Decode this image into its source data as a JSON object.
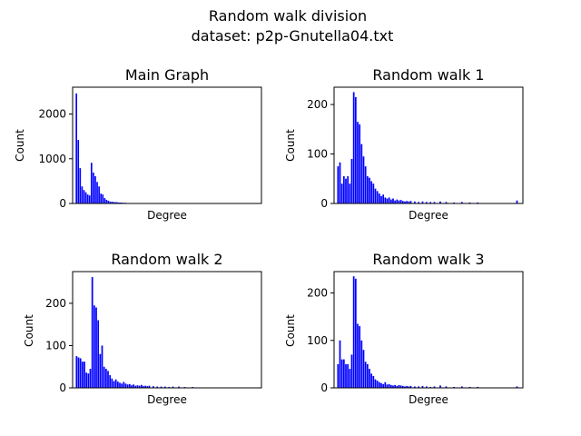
{
  "figure": {
    "title_line1": "Random walk division",
    "title_line2": "dataset: p2p-Gnutella04.txt",
    "bar_color": "#0000ff"
  },
  "chart_data": [
    {
      "type": "bar",
      "title": "Main Graph",
      "xlabel": "Degree",
      "ylabel": "Count",
      "ylim": [
        0,
        2600
      ],
      "yticks": [
        0,
        1000,
        2000
      ],
      "xlim": [
        -1,
        99
      ],
      "x": [
        1,
        2,
        3,
        4,
        5,
        6,
        7,
        8,
        9,
        10,
        11,
        12,
        13,
        14,
        15,
        16,
        17,
        18,
        19,
        20,
        21,
        22,
        23,
        24,
        25,
        26,
        27,
        28,
        29,
        30
      ],
      "values": [
        2460,
        1420,
        790,
        380,
        300,
        250,
        200,
        180,
        910,
        690,
        610,
        480,
        380,
        220,
        200,
        120,
        80,
        60,
        40,
        40,
        30,
        30,
        25,
        20,
        20,
        15,
        15,
        10,
        10,
        10
      ]
    },
    {
      "type": "bar",
      "title": "Random walk 1",
      "xlabel": "Degree",
      "ylabel": "Count",
      "ylim": [
        0,
        235
      ],
      "yticks": [
        0,
        100,
        200
      ],
      "xlim": [
        -1,
        95
      ],
      "x": [
        1,
        2,
        3,
        4,
        5,
        6,
        7,
        8,
        9,
        10,
        11,
        12,
        13,
        14,
        15,
        16,
        17,
        18,
        19,
        20,
        21,
        22,
        23,
        24,
        25,
        26,
        27,
        28,
        29,
        30,
        31,
        32,
        33,
        34,
        35,
        36,
        37,
        38,
        40,
        42,
        44,
        46,
        48,
        50,
        53,
        56,
        60,
        64,
        68,
        72,
        92
      ],
      "values": [
        75,
        83,
        40,
        55,
        50,
        55,
        40,
        90,
        225,
        215,
        165,
        160,
        120,
        95,
        75,
        55,
        52,
        45,
        40,
        30,
        25,
        20,
        15,
        18,
        12,
        10,
        12,
        8,
        10,
        6,
        8,
        6,
        7,
        5,
        4,
        5,
        4,
        5,
        4,
        3,
        4,
        3,
        3,
        3,
        4,
        3,
        2,
        3,
        2,
        2,
        6
      ]
    },
    {
      "type": "bar",
      "title": "Random walk 2",
      "xlabel": "Degree",
      "ylabel": "Count",
      "ylim": [
        0,
        275
      ],
      "yticks": [
        0,
        100,
        200
      ],
      "xlim": [
        -1,
        95
      ],
      "x": [
        1,
        2,
        3,
        4,
        5,
        6,
        7,
        8,
        9,
        10,
        11,
        12,
        13,
        14,
        15,
        16,
        17,
        18,
        19,
        20,
        21,
        22,
        23,
        24,
        25,
        26,
        27,
        28,
        29,
        30,
        31,
        32,
        33,
        34,
        35,
        36,
        37,
        38,
        40,
        42,
        44,
        46,
        48,
        50,
        53,
        56,
        60
      ],
      "values": [
        75,
        72,
        70,
        62,
        62,
        36,
        34,
        45,
        262,
        195,
        190,
        160,
        80,
        100,
        50,
        45,
        40,
        30,
        22,
        16,
        20,
        15,
        12,
        10,
        14,
        10,
        8,
        9,
        6,
        8,
        5,
        6,
        5,
        7,
        4,
        5,
        4,
        5,
        4,
        3,
        3,
        3,
        2,
        3,
        3,
        2,
        2
      ]
    },
    {
      "type": "bar",
      "title": "Random walk 3",
      "xlabel": "Degree",
      "ylabel": "Count",
      "ylim": [
        0,
        245
      ],
      "yticks": [
        0,
        100,
        200
      ],
      "xlim": [
        -1,
        95
      ],
      "x": [
        1,
        2,
        3,
        4,
        5,
        6,
        7,
        8,
        9,
        10,
        11,
        12,
        13,
        14,
        15,
        16,
        17,
        18,
        19,
        20,
        21,
        22,
        23,
        24,
        25,
        26,
        27,
        28,
        29,
        30,
        31,
        32,
        33,
        34,
        35,
        36,
        37,
        38,
        40,
        42,
        44,
        46,
        48,
        50,
        53,
        56,
        60,
        64,
        68,
        72,
        92
      ],
      "values": [
        50,
        100,
        60,
        60,
        50,
        50,
        40,
        70,
        235,
        230,
        135,
        130,
        100,
        80,
        55,
        50,
        40,
        30,
        25,
        18,
        15,
        12,
        10,
        8,
        12,
        7,
        8,
        6,
        5,
        6,
        4,
        6,
        5,
        4,
        3,
        4,
        3,
        4,
        3,
        3,
        4,
        3,
        2,
        3,
        5,
        3,
        2,
        3,
        2,
        2,
        3
      ]
    }
  ]
}
